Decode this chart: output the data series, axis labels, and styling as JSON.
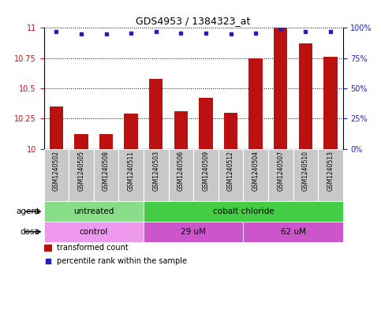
{
  "title": "GDS4953 / 1384323_at",
  "samples": [
    "GSM1240502",
    "GSM1240505",
    "GSM1240508",
    "GSM1240511",
    "GSM1240503",
    "GSM1240506",
    "GSM1240509",
    "GSM1240512",
    "GSM1240504",
    "GSM1240507",
    "GSM1240510",
    "GSM1240513"
  ],
  "transformed_count": [
    10.35,
    10.12,
    10.12,
    10.29,
    10.58,
    10.31,
    10.42,
    10.3,
    10.75,
    11.0,
    10.87,
    10.76
  ],
  "percentile_rank": [
    97,
    95,
    95,
    96,
    97,
    96,
    96,
    95,
    96,
    99,
    97,
    97
  ],
  "ylim_left": [
    10.0,
    11.0
  ],
  "ylim_right": [
    0,
    100
  ],
  "yticks_left": [
    10.0,
    10.25,
    10.5,
    10.75,
    11.0
  ],
  "yticks_right": [
    0,
    25,
    50,
    75,
    100
  ],
  "ytick_labels_left": [
    "10",
    "10.25",
    "10.5",
    "10.75",
    "11"
  ],
  "ytick_labels_right": [
    "0%",
    "25%",
    "50%",
    "75%",
    "100%"
  ],
  "bar_color": "#BB1111",
  "dot_color": "#2222BB",
  "agent_groups": [
    {
      "label": "untreated",
      "start": 0,
      "end": 4,
      "color": "#88DD88"
    },
    {
      "label": "cobalt chloride",
      "start": 4,
      "end": 12,
      "color": "#44CC44"
    }
  ],
  "dose_groups": [
    {
      "label": "control",
      "start": 0,
      "end": 4,
      "color": "#EE88EE"
    },
    {
      "label": "29 uM",
      "start": 4,
      "end": 8,
      "color": "#DD55DD"
    },
    {
      "label": "62 uM",
      "start": 8,
      "end": 12,
      "color": "#DD55DD"
    }
  ],
  "legend_bar_label": "transformed count",
  "legend_dot_label": "percentile rank within the sample",
  "label_agent": "agent",
  "label_dose": "dose",
  "sample_bg_color": "#C8C8C8",
  "sample_border_color": "#FFFFFF"
}
